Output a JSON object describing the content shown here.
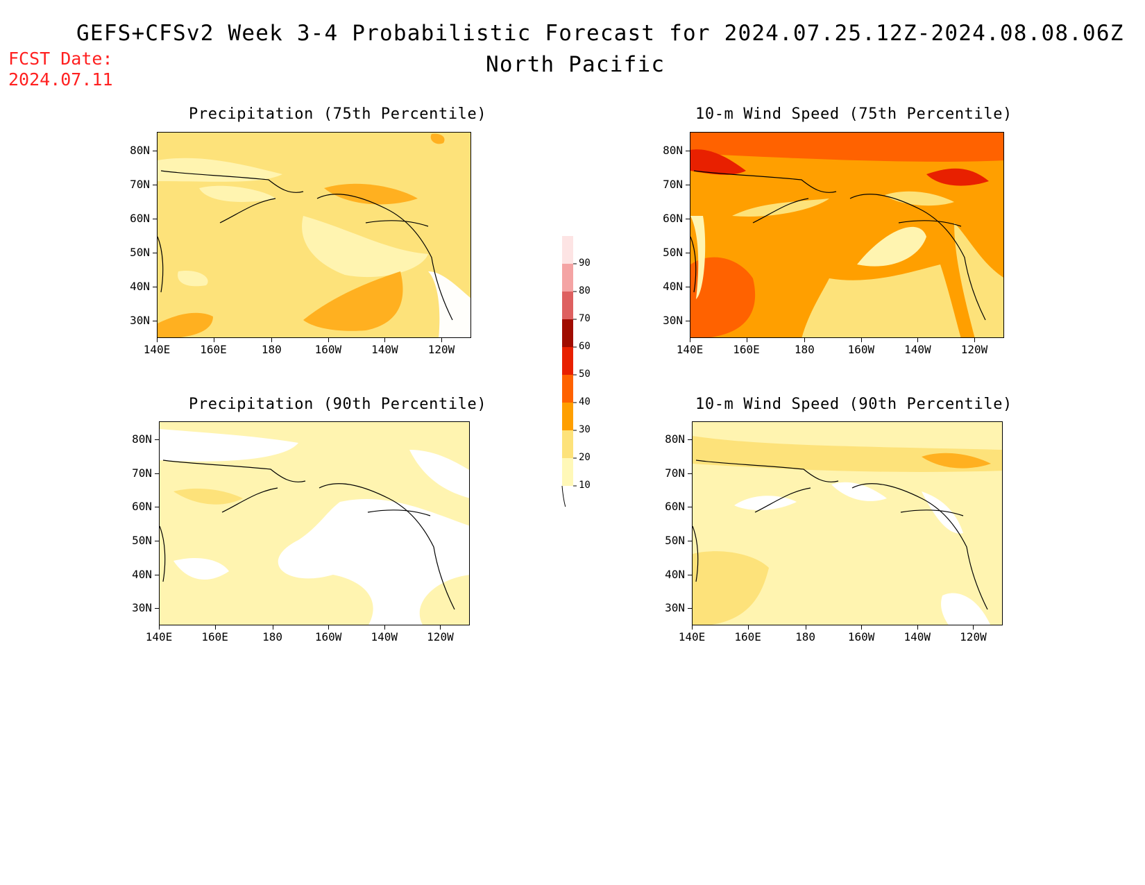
{
  "header": {
    "title": "GEFS+CFSv2 Week 3-4 Probabilistic Forecast for 2024.07.25.12Z-2024.08.08.06Z",
    "region": "North Pacific",
    "fcst_label": "FCST Date:",
    "fcst_date": "2024.07.11"
  },
  "axes": {
    "lat_labels": [
      "80N",
      "70N",
      "60N",
      "50N",
      "40N",
      "30N"
    ],
    "lon_labels": [
      "140E",
      "160E",
      "180",
      "160W",
      "140W",
      "120W"
    ]
  },
  "panels": [
    {
      "title": "Precipitation (75th Percentile)",
      "base_color": "#fde27a"
    },
    {
      "title": "10-m Wind Speed (75th Percentile)",
      "base_color": "#ff9f00"
    },
    {
      "title": "Precipitation (90th Percentile)",
      "base_color": "#fff4b0"
    },
    {
      "title": "10-m Wind Speed (90th Percentile)",
      "base_color": "#fde27a"
    }
  ],
  "colorbar": {
    "levels": [
      "10",
      "20",
      "30",
      "40",
      "50",
      "60",
      "70",
      "80",
      "90"
    ],
    "colors": [
      "#fff8b8",
      "#fde27a",
      "#ff9f00",
      "#ff6200",
      "#e82000",
      "#a00c00",
      "#de6060",
      "#f4a4a4",
      "#fde4e4"
    ]
  }
}
